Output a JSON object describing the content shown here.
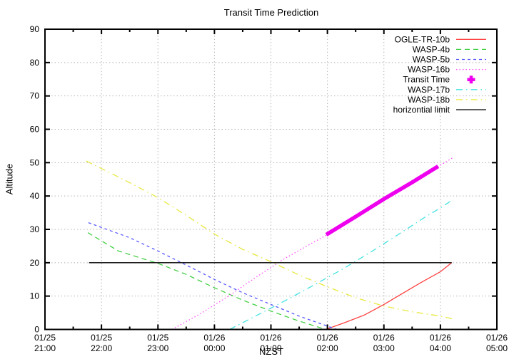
{
  "page": {
    "background": "#ffffff"
  },
  "chart_data": {
    "type": "line",
    "title": "Transit Time Prediction",
    "xlabel": "NZST",
    "ylabel": "Altitude",
    "grid": true,
    "legend_position": "top-right-inside",
    "x_axis": {
      "unit": "hours since 01/25 21:00 NZST",
      "range_hours": [
        0,
        8
      ],
      "major_tick_every_hours": 1,
      "minor_tick_every_hours": 0.5,
      "tick_labels": [
        {
          "date": "01/25",
          "time": "21:00"
        },
        {
          "date": "01/25",
          "time": "22:00"
        },
        {
          "date": "01/25",
          "time": "23:00"
        },
        {
          "date": "01/26",
          "time": "00:00"
        },
        {
          "date": "01/26",
          "time": "01:00"
        },
        {
          "date": "01/26",
          "time": "02:00"
        },
        {
          "date": "01/26",
          "time": "03:00"
        },
        {
          "date": "01/26",
          "time": "04:00"
        },
        {
          "date": "01/26",
          "time": "05:00"
        }
      ]
    },
    "y_axis": {
      "range": [
        0,
        90
      ],
      "tick_step": 10,
      "tick_labels": [
        0,
        10,
        20,
        30,
        40,
        50,
        60,
        70,
        80,
        90
      ]
    },
    "grid_color": "#b4b4b4",
    "series": [
      {
        "name": "OGLE-TR-10b",
        "color": "#ff4040",
        "style": "solid",
        "width": 1.3,
        "points": [
          [
            4.97,
            0
          ],
          [
            5.3,
            2.0
          ],
          [
            5.65,
            4.3
          ],
          [
            6.0,
            7.5
          ],
          [
            6.3,
            10.5
          ],
          [
            6.65,
            14.0
          ],
          [
            7.0,
            17.3
          ],
          [
            7.2,
            20.0
          ]
        ]
      },
      {
        "name": "WASP-4b",
        "color": "#44d044",
        "style": "dashed",
        "width": 1.3,
        "points": [
          [
            0.76,
            29.0
          ],
          [
            1.3,
            23.5
          ],
          [
            2.0,
            19.8
          ],
          [
            2.5,
            16.5
          ],
          [
            3.0,
            12.5
          ],
          [
            3.5,
            8.8
          ],
          [
            4.0,
            5.5
          ],
          [
            4.5,
            2.5
          ],
          [
            4.97,
            0
          ]
        ]
      },
      {
        "name": "WASP-5b",
        "color": "#5858ff",
        "style": "short-dashed",
        "width": 1.3,
        "points": [
          [
            0.77,
            32.0
          ],
          [
            1.5,
            27.5
          ],
          [
            2.0,
            23.5
          ],
          [
            2.5,
            19.3
          ],
          [
            3.0,
            15.0
          ],
          [
            3.5,
            11.0
          ],
          [
            4.0,
            7.5
          ],
          [
            4.5,
            4.0
          ],
          [
            5.0,
            1.0
          ],
          [
            5.17,
            0
          ]
        ]
      },
      {
        "name": "WASP-16b",
        "color": "#ff50ff",
        "style": "dotted",
        "width": 1.3,
        "points": [
          [
            2.25,
            0
          ],
          [
            2.75,
            4.7
          ],
          [
            3.25,
            10.0
          ],
          [
            3.75,
            15.8
          ],
          [
            4.25,
            21.3
          ],
          [
            4.75,
            26.1
          ],
          [
            5.0,
            28.4
          ],
          [
            5.5,
            33.8
          ],
          [
            6.0,
            39.1
          ],
          [
            6.5,
            44.1
          ],
          [
            7.0,
            49.2
          ],
          [
            7.21,
            51.4
          ]
        ]
      },
      {
        "name": "Transit Time",
        "color": "#ee00ee",
        "style": "thick",
        "width": 5.5,
        "legend_marker": "plus",
        "points": [
          [
            4.98,
            28.4
          ],
          [
            5.5,
            33.8
          ],
          [
            6.0,
            39.1
          ],
          [
            6.5,
            44.1
          ],
          [
            6.96,
            48.9
          ]
        ]
      },
      {
        "name": "WASP-17b",
        "color": "#44e2e2",
        "style": "dash-dot",
        "width": 1.3,
        "points": [
          [
            3.27,
            0
          ],
          [
            3.75,
            4.2
          ],
          [
            4.25,
            8.6
          ],
          [
            4.75,
            13.2
          ],
          [
            5.25,
            17.9
          ],
          [
            5.75,
            23.0
          ],
          [
            6.25,
            28.4
          ],
          [
            6.75,
            33.9
          ],
          [
            7.0,
            36.4
          ],
          [
            7.21,
            38.8
          ]
        ]
      },
      {
        "name": "WASP-18b",
        "color": "#e8e840",
        "style": "dash-dot",
        "width": 1.3,
        "points": [
          [
            0.73,
            50.5
          ],
          [
            1.5,
            44.0
          ],
          [
            2.0,
            39.5
          ],
          [
            2.5,
            34.2
          ],
          [
            3.0,
            28.6
          ],
          [
            3.5,
            24.0
          ],
          [
            4.0,
            20.3
          ],
          [
            4.5,
            16.3
          ],
          [
            5.0,
            12.8
          ],
          [
            5.5,
            9.5
          ],
          [
            6.0,
            7.0
          ],
          [
            6.5,
            5.3
          ],
          [
            7.0,
            4.0
          ],
          [
            7.21,
            3.2
          ]
        ]
      },
      {
        "name": "horizontial limit",
        "color": "#000000",
        "style": "solid",
        "width": 1.3,
        "points": [
          [
            0.78,
            20
          ],
          [
            7.2,
            20
          ]
        ]
      }
    ]
  }
}
